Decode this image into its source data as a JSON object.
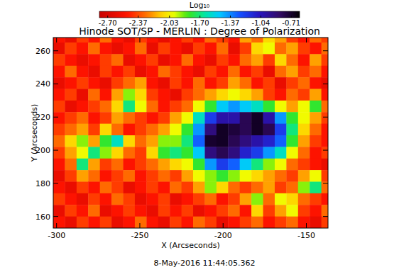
{
  "chart_data": {
    "type": "heatmap",
    "title": "Hinode SOT/SP - MERLIN : Degree of Polarization",
    "xlabel": "X (Arcseconds)",
    "ylabel": "Y (Arcseconds)",
    "annotations": [
      "8-May-2016 11:44:05.362"
    ],
    "xlim": [
      -302,
      -137
    ],
    "ylim": [
      153,
      268
    ],
    "xticks": [
      -300,
      -250,
      -200,
      -150
    ],
    "yticks": [
      160,
      180,
      200,
      220,
      240,
      260
    ],
    "colorbar": {
      "label": "Log₁₀",
      "range": [
        -2.79,
        -0.62
      ],
      "ticks": [
        {
          "value": -2.7,
          "label": "-2.70"
        },
        -2.37,
        -2.03,
        {
          "value": -1.7,
          "label": "-1.70"
        },
        -1.37,
        -1.04,
        -0.71
      ]
    },
    "x": [
      -298.5,
      -291.5,
      -284.5,
      -277.5,
      -270.5,
      -263.5,
      -256.5,
      -249.5,
      -242.5,
      -235.5,
      -228.5,
      -221.5,
      -214.5,
      -207.5,
      -200.5,
      -193.5,
      -186.5,
      -179.5,
      -172.5,
      -165.5,
      -158.5,
      -151.5,
      -144.5,
      -137.5
    ],
    "y": [
      268.5,
      261.5,
      254.5,
      247.5,
      240.5,
      233.5,
      226.5,
      219.5,
      212.5,
      205.5,
      198.5,
      191.5,
      184.5,
      177.5,
      170.5,
      163.5,
      156.5
    ],
    "values": [
      [
        -2.5,
        -2.6,
        -2.4,
        -2.5,
        -2.3,
        -2.5,
        -2.6,
        -2.4,
        -2.5,
        -2.6,
        -2.5,
        -2.4,
        -2.5,
        -2.3,
        -2.4,
        -2.5,
        -2.2,
        -2.3,
        -2.1,
        -2.2,
        -2.4,
        -2.5,
        -2.3,
        -2.4
      ],
      [
        -2.6,
        -2.4,
        -2.5,
        -2.3,
        -2.5,
        -2.6,
        -2.5,
        -2.3,
        -2.6,
        -2.4,
        -2.5,
        -2.6,
        -2.4,
        -2.5,
        -2.3,
        -2.6,
        -2.4,
        -2.1,
        -2.0,
        -2.3,
        -2.2,
        -2.4,
        -2.5,
        -2.3
      ],
      [
        -2.4,
        -2.5,
        -2.6,
        -2.5,
        -2.4,
        -2.3,
        -2.6,
        -2.5,
        -2.4,
        -2.6,
        -2.5,
        -2.3,
        -2.5,
        -2.6,
        -2.4,
        -2.5,
        -2.3,
        -2.2,
        -2.4,
        -2.1,
        -2.3,
        -2.5,
        -2.2,
        -2.4
      ],
      [
        -2.5,
        -2.3,
        -2.5,
        -2.6,
        -2.4,
        -2.5,
        -2.4,
        -2.6,
        -2.5,
        -2.3,
        -2.4,
        -2.5,
        -2.6,
        -2.4,
        -2.5,
        -2.3,
        -2.5,
        -2.4,
        -2.6,
        -2.3,
        -2.2,
        -2.4,
        -2.3,
        -2.5
      ],
      [
        -2.6,
        -2.5,
        -2.4,
        -2.5,
        -2.6,
        -2.4,
        -2.3,
        -2.2,
        -2.5,
        -2.6,
        -2.4,
        -2.5,
        -2.3,
        -2.5,
        -2.4,
        -2.2,
        -2.3,
        -2.5,
        -2.4,
        -2.6,
        -2.4,
        -2.3,
        -2.5,
        -2.6
      ],
      [
        -2.5,
        -2.4,
        -2.6,
        -2.3,
        -2.5,
        -2.2,
        -1.9,
        -2.1,
        -2.4,
        -2.5,
        -2.6,
        -2.4,
        -2.3,
        -2.2,
        -2.1,
        -2.0,
        -2.1,
        -2.2,
        -2.4,
        -2.5,
        -2.3,
        -2.4,
        -2.2,
        -2.5
      ],
      [
        -2.4,
        -2.6,
        -2.5,
        -2.4,
        -2.3,
        -2.1,
        -1.7,
        -2.0,
        -2.3,
        -2.5,
        -2.4,
        -2.3,
        -2.0,
        -1.8,
        -1.5,
        -1.4,
        -1.5,
        -1.6,
        -1.8,
        -2.0,
        -2.2,
        -2.0,
        -1.8,
        -2.3
      ],
      [
        -2.5,
        -2.4,
        -2.3,
        -2.5,
        -2.4,
        -2.2,
        -2.3,
        -2.4,
        -2.5,
        -2.4,
        -2.2,
        -2.0,
        -1.6,
        -1.2,
        -1.0,
        -1.0,
        -0.8,
        -0.7,
        -1.0,
        -1.4,
        -1.8,
        -2.0,
        -2.2,
        -2.4
      ],
      [
        -2.4,
        -2.3,
        -2.2,
        -2.4,
        -2.1,
        -2.3,
        -2.5,
        -2.4,
        -2.3,
        -2.2,
        -2.0,
        -1.8,
        -1.4,
        -0.9,
        -0.7,
        -0.75,
        -0.8,
        -0.7,
        -0.8,
        -1.2,
        -1.7,
        -2.1,
        -2.3,
        -2.5
      ],
      [
        -2.3,
        -2.1,
        -1.9,
        -2.2,
        -1.8,
        -1.6,
        -2.1,
        -2.3,
        -2.2,
        -1.9,
        -1.9,
        -1.7,
        -1.3,
        -0.72,
        -0.7,
        -0.8,
        -0.9,
        -1.0,
        -1.1,
        -1.3,
        -1.8,
        -2.2,
        -2.4,
        -2.5
      ],
      [
        -2.4,
        -2.2,
        -2.0,
        -1.7,
        -1.9,
        -2.1,
        -2.3,
        -2.4,
        -2.1,
        -1.8,
        -1.7,
        -1.8,
        -1.5,
        -0.9,
        -0.8,
        -0.9,
        -1.1,
        -1.2,
        -1.4,
        -1.6,
        -2.0,
        -2.3,
        -2.5,
        -2.4
      ],
      [
        -2.5,
        -2.3,
        -1.7,
        -2.2,
        -2.4,
        -2.3,
        -2.5,
        -2.4,
        -2.3,
        -2.2,
        -2.1,
        -2.0,
        -1.8,
        -1.4,
        -1.2,
        -1.3,
        -1.5,
        -1.7,
        -1.9,
        -2.0,
        -2.3,
        -2.4,
        -2.5,
        -2.6
      ],
      [
        -2.6,
        -2.4,
        -2.2,
        -2.3,
        -2.5,
        -2.4,
        -2.3,
        -2.5,
        -2.4,
        -2.3,
        -2.4,
        -2.2,
        -2.0,
        -1.9,
        -1.8,
        -1.9,
        -2.0,
        -2.1,
        -2.2,
        -2.3,
        -2.4,
        -2.2,
        -2.0,
        -2.4
      ],
      [
        -2.5,
        -2.6,
        -2.4,
        -2.5,
        -2.3,
        -2.4,
        -2.6,
        -2.5,
        -2.4,
        -2.5,
        -2.3,
        -2.4,
        -2.2,
        -1.9,
        -2.1,
        -2.3,
        -2.4,
        -2.3,
        -2.2,
        -2.4,
        -2.3,
        -1.9,
        -1.7,
        -2.3
      ],
      [
        -2.4,
        -2.5,
        -2.6,
        -2.4,
        -2.5,
        -2.3,
        -2.4,
        -2.6,
        -2.5,
        -2.4,
        -2.6,
        -2.5,
        -2.4,
        -2.3,
        -2.5,
        -2.4,
        -2.2,
        -1.9,
        -2.3,
        -2.0,
        -2.1,
        -2.3,
        -2.4,
        -2.5
      ],
      [
        -2.6,
        -2.4,
        -2.5,
        -2.3,
        -2.6,
        -2.5,
        -2.4,
        -2.5,
        -2.6,
        -2.4,
        -2.5,
        -2.4,
        -2.6,
        -2.5,
        -2.4,
        -2.3,
        -2.5,
        -2.1,
        -2.4,
        -2.2,
        -2.0,
        -2.4,
        -2.5,
        -2.3
      ],
      [
        -2.5,
        -2.6,
        -2.4,
        -2.5,
        -2.4,
        -2.6,
        -2.5,
        -2.3,
        -2.5,
        -2.6,
        -2.4,
        -2.5,
        -2.3,
        -2.4,
        -2.6,
        -2.5,
        -2.4,
        -2.3,
        -2.5,
        -2.4,
        -2.3,
        -2.5,
        -2.6,
        -2.4
      ]
    ]
  }
}
